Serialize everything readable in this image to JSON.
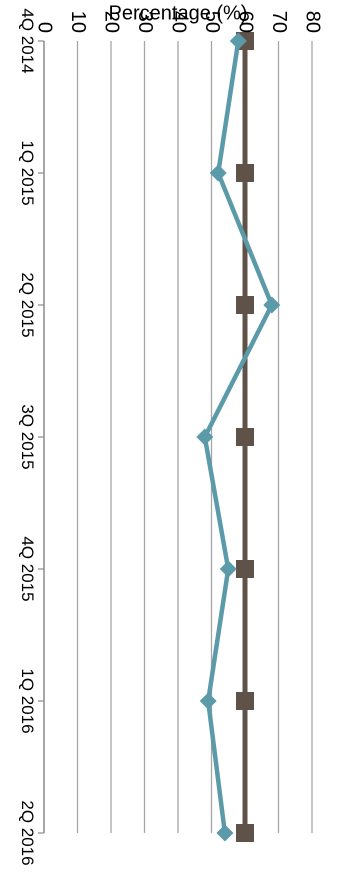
{
  "chart_data": {
    "type": "line",
    "orientation": "rotated-90-clockwise",
    "categories": [
      "4Q 2014",
      "1Q 2015",
      "2Q 2015",
      "3Q 2015",
      "4Q 2015",
      "1Q 2016",
      "2Q 2016"
    ],
    "series": [
      {
        "values": [
          58,
          52,
          68,
          48,
          55,
          49,
          54
        ],
        "color": "#5b9aa8",
        "marker": "diamond"
      },
      {
        "values": [
          60,
          60,
          60,
          60,
          60,
          60,
          60
        ],
        "color": "#5f5249",
        "marker": "square"
      }
    ],
    "ylabel": "Percentage (%)",
    "ylim": [
      0,
      80
    ],
    "yticks": [
      0,
      10,
      20,
      30,
      40,
      50,
      60,
      70,
      80
    ],
    "grid": true,
    "legend": "none"
  }
}
